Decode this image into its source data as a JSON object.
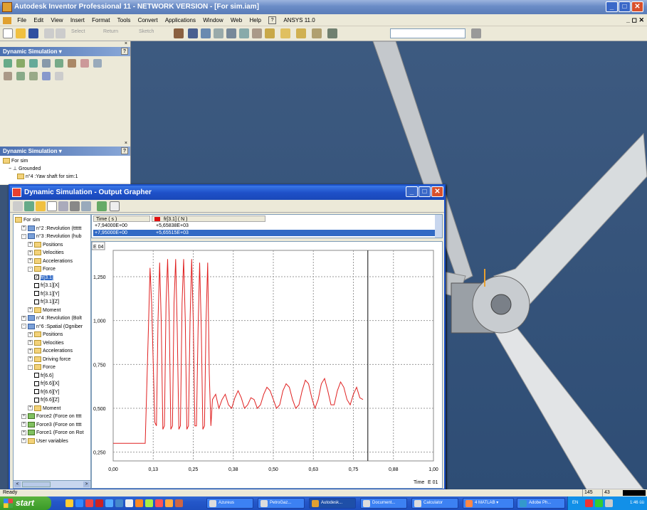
{
  "window": {
    "title": "Autodesk Inventor Professional 11 - NETWORK VERSION - [For sim.iam]"
  },
  "menu": [
    "File",
    "Edit",
    "View",
    "Insert",
    "Format",
    "Tools",
    "Convert",
    "Applications",
    "Window",
    "Web",
    "Help",
    "ANSYS 11.0"
  ],
  "toolbar": {
    "select": "Select",
    "return": "Return",
    "sketch": "Sketch"
  },
  "panels": {
    "top_title": "Dynamic Simulation",
    "browser_title": "Dynamic Simulation",
    "browser_items": [
      "For sim",
      "Grounded",
      "n°4 :Yaw shaft for sim:1"
    ]
  },
  "grapher": {
    "title": "Dynamic Simulation - Output Grapher",
    "tree": [
      {
        "label": "For sim",
        "level": 0,
        "kind": "folder"
      },
      {
        "label": "n°2 :Revolution (tttttt",
        "level": 1,
        "kind": "joint",
        "exp": "+"
      },
      {
        "label": "n°3 :Revolution (hub",
        "level": 1,
        "kind": "joint",
        "exp": "-"
      },
      {
        "label": "Positions",
        "level": 2,
        "kind": "folder",
        "exp": "+"
      },
      {
        "label": "Velocities",
        "level": 2,
        "kind": "folder",
        "exp": "+"
      },
      {
        "label": "Accelerations",
        "level": 2,
        "kind": "folder",
        "exp": "+"
      },
      {
        "label": "Force",
        "level": 2,
        "kind": "folder",
        "exp": "-"
      },
      {
        "label": "fr[3.1]",
        "level": 3,
        "kind": "check",
        "checked": true,
        "selected": true
      },
      {
        "label": "fr[3.1][X]",
        "level": 3,
        "kind": "check"
      },
      {
        "label": "fr[3.1][Y]",
        "level": 3,
        "kind": "check"
      },
      {
        "label": "fr[3.1][Z]",
        "level": 3,
        "kind": "check"
      },
      {
        "label": "Moment",
        "level": 2,
        "kind": "folder",
        "exp": "+"
      },
      {
        "label": "n°4 :Revolution (Bolt",
        "level": 1,
        "kind": "joint",
        "exp": "+"
      },
      {
        "label": "n°6 :Spatial (Ogniber",
        "level": 1,
        "kind": "joint",
        "exp": "-"
      },
      {
        "label": "Positions",
        "level": 2,
        "kind": "folder",
        "exp": "+"
      },
      {
        "label": "Velocities",
        "level": 2,
        "kind": "folder",
        "exp": "+"
      },
      {
        "label": "Accelerations",
        "level": 2,
        "kind": "folder",
        "exp": "+"
      },
      {
        "label": "Driving force",
        "level": 2,
        "kind": "folder",
        "exp": "+"
      },
      {
        "label": "Force",
        "level": 2,
        "kind": "folder",
        "exp": "-"
      },
      {
        "label": "fr[6.6]",
        "level": 3,
        "kind": "check"
      },
      {
        "label": "fr[6.6][X]",
        "level": 3,
        "kind": "check"
      },
      {
        "label": "fr[6.6][Y]",
        "level": 3,
        "kind": "check"
      },
      {
        "label": "fr[6.6][Z]",
        "level": 3,
        "kind": "check"
      },
      {
        "label": "Moment",
        "level": 2,
        "kind": "folder",
        "exp": "+"
      },
      {
        "label": "Force2 (Force on tttt",
        "level": 1,
        "kind": "force",
        "exp": "+"
      },
      {
        "label": "Force3 (Force on tttt",
        "level": 1,
        "kind": "force",
        "exp": "+"
      },
      {
        "label": "Force1 (Force on Rot",
        "level": 1,
        "kind": "force",
        "exp": "+"
      },
      {
        "label": "User variables",
        "level": 1,
        "kind": "folder",
        "exp": "+"
      }
    ],
    "table": {
      "headers": [
        "Time ( s )",
        "fr[3.1] ( N )"
      ],
      "rows": [
        [
          "+7,94000E+00",
          "+5,65838E+03"
        ],
        [
          "+7,95000E+00",
          "+5,65515E+03"
        ]
      ]
    }
  },
  "chart_data": {
    "type": "line",
    "title": "",
    "exponent_label": "E 04",
    "xlabel": "Time",
    "x_exponent": "E 01",
    "xlim": [
      0,
      1.0
    ],
    "ylim": [
      0.2,
      1.4
    ],
    "xticks": [
      "0,00",
      "0,13",
      "0,25",
      "0,38",
      "0,50",
      "0,63",
      "0,75",
      "0,88",
      "1,00"
    ],
    "yticks": [
      "0,250",
      "0,500",
      "0,750",
      "1,000",
      "1,250"
    ],
    "ytick_values": [
      0.25,
      0.5,
      0.75,
      1.0,
      1.25
    ],
    "cursor_x": 0.795,
    "series": [
      {
        "color": "#e02020",
        "x": [
          0,
          0.09,
          0.1,
          0.11,
          0.115,
          0.12,
          0.13,
          0.135,
          0.14,
          0.145,
          0.15,
          0.155,
          0.16,
          0.165,
          0.17,
          0.175,
          0.18,
          0.185,
          0.19,
          0.195,
          0.2,
          0.205,
          0.21,
          0.215,
          0.22,
          0.225,
          0.23,
          0.235,
          0.24,
          0.245,
          0.25,
          0.255,
          0.26,
          0.265,
          0.27,
          0.275,
          0.28,
          0.285,
          0.29,
          0.295,
          0.3,
          0.305,
          0.31,
          0.32,
          0.33,
          0.34,
          0.35,
          0.36,
          0.37,
          0.38,
          0.39,
          0.4,
          0.41,
          0.42,
          0.43,
          0.44,
          0.45,
          0.46,
          0.47,
          0.48,
          0.49,
          0.5,
          0.51,
          0.52,
          0.53,
          0.54,
          0.55,
          0.56,
          0.57,
          0.58,
          0.59,
          0.6,
          0.61,
          0.62,
          0.63,
          0.64,
          0.65,
          0.66,
          0.67,
          0.68,
          0.69,
          0.7,
          0.71,
          0.72,
          0.73,
          0.74,
          0.75,
          0.76,
          0.77,
          0.78
        ],
        "y": [
          0.3,
          0.3,
          0.3,
          0.95,
          1.3,
          1.1,
          0.42,
          0.4,
          1.0,
          1.33,
          1.0,
          0.38,
          0.4,
          1.1,
          1.35,
          1.0,
          0.38,
          0.4,
          1.1,
          1.35,
          0.95,
          0.38,
          0.4,
          1.1,
          1.35,
          1.0,
          0.38,
          0.4,
          1.0,
          1.35,
          1.0,
          0.4,
          0.4,
          0.95,
          1.33,
          0.95,
          0.38,
          0.4,
          1.0,
          1.33,
          0.7,
          0.4,
          0.55,
          0.58,
          0.5,
          0.55,
          0.58,
          0.52,
          0.5,
          0.56,
          0.6,
          0.56,
          0.5,
          0.52,
          0.56,
          0.55,
          0.5,
          0.52,
          0.58,
          0.62,
          0.6,
          0.55,
          0.5,
          0.52,
          0.6,
          0.64,
          0.62,
          0.55,
          0.5,
          0.52,
          0.6,
          0.66,
          0.64,
          0.56,
          0.5,
          0.55,
          0.64,
          0.67,
          0.6,
          0.52,
          0.52,
          0.6,
          0.65,
          0.62,
          0.55,
          0.52,
          0.58,
          0.62,
          0.56,
          0.55
        ]
      }
    ]
  },
  "status": {
    "text": "Ready",
    "coord_a": "145",
    "coord_b": "43"
  },
  "taskbar": {
    "start": "start",
    "tasks": [
      "Azureus",
      "PetroGaz...",
      "Autodesk...",
      "Document...",
      "Calculator",
      "4 MATLAB",
      "Adobe Ph..."
    ],
    "lang": "EN",
    "clock": "1:46 üü"
  }
}
